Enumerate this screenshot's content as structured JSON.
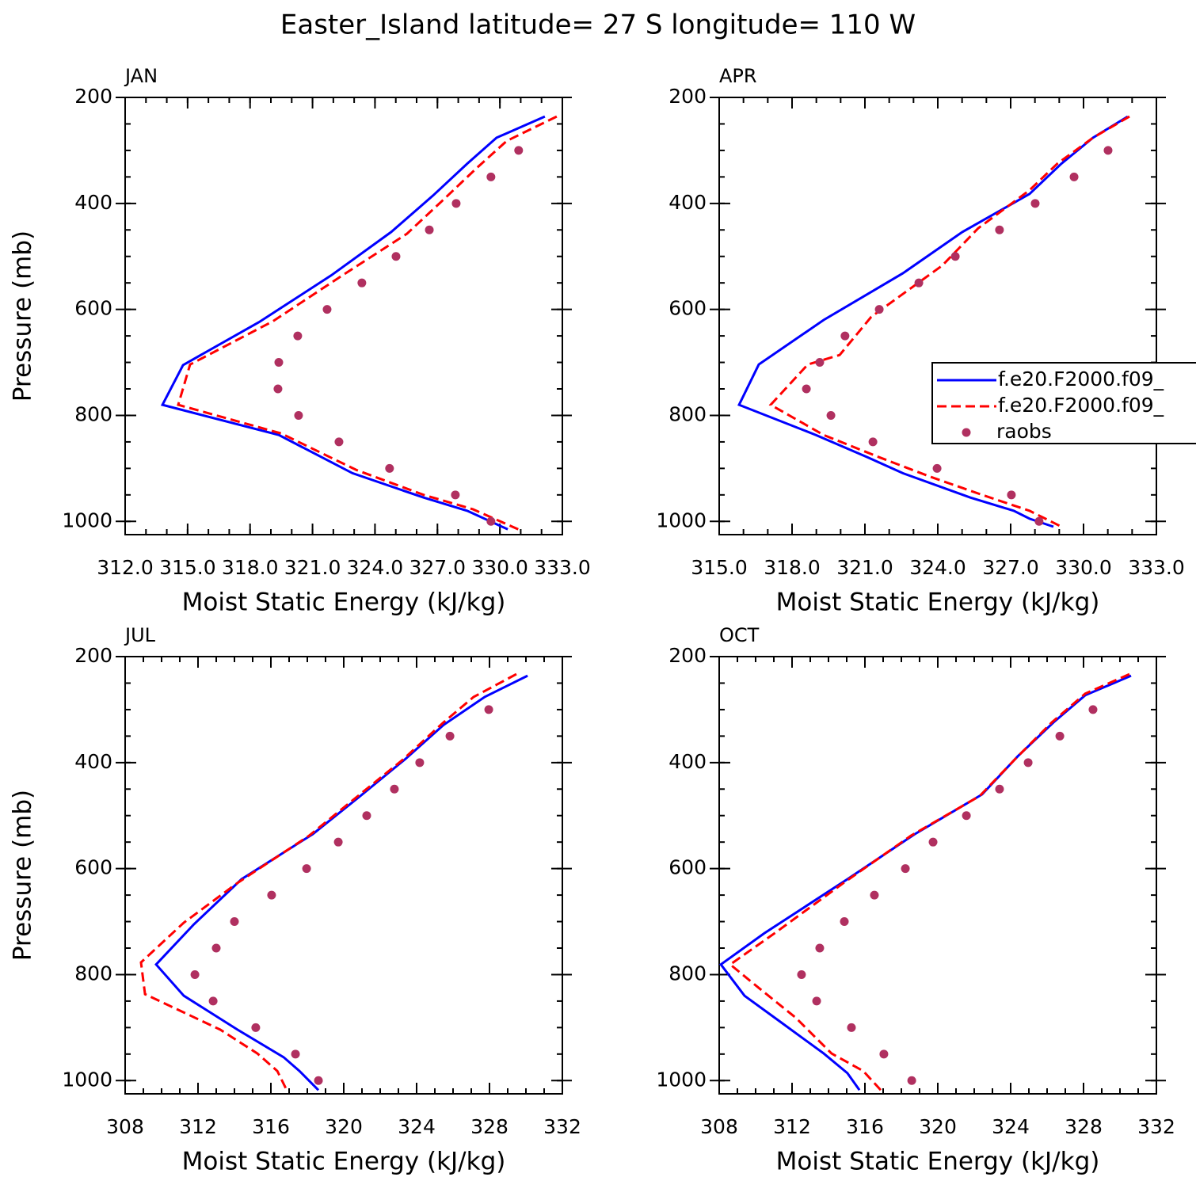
{
  "title": "Easter_Island  latitude= 27 S longitude= 110 W",
  "chart_data": [
    {
      "type": "line",
      "title": "JAN",
      "xlabel": "Moist Static Energy (kJ/kg)",
      "ylabel": "Pressure (mb)",
      "xlim": [
        312,
        333
      ],
      "xticks": [
        {
          "value": 312,
          "label": "312.0"
        },
        {
          "value": 315,
          "label": "315.0"
        },
        {
          "value": 318,
          "label": "318.0"
        },
        {
          "value": 321,
          "label": "321.0"
        },
        {
          "value": 324,
          "label": "324.0"
        },
        {
          "value": 327,
          "label": "327.0"
        },
        {
          "value": 330,
          "label": "330.0"
        },
        {
          "value": 333,
          "label": "333.0"
        }
      ],
      "xminor": 1,
      "ylim": [
        200,
        1025
      ],
      "yticks": [
        200,
        400,
        600,
        800,
        1000
      ],
      "yminor": 50,
      "yreverse": true,
      "series": [
        {
          "color": "#0000ff",
          "x": [
            332.16,
            329.84,
            328.43,
            326.79,
            324.78,
            321.89,
            318.43,
            314.78,
            313.79,
            319.38,
            322.92,
            326.34,
            328.43,
            330.38
          ],
          "y": [
            236,
            276,
            325,
            385,
            454,
            536,
            624,
            705,
            780,
            837,
            909,
            955,
            980,
            1015
          ]
        },
        {
          "color": "#ff0000",
          "dash": true,
          "x": [
            332.73,
            330.33,
            328.89,
            327.18,
            325.54,
            322.23,
            319.11,
            315.12,
            314.55,
            319.49,
            323.11,
            326.34,
            328.7,
            330.88
          ],
          "y": [
            236,
            282,
            333,
            397,
            457,
            541,
            622,
            704,
            780,
            834,
            903,
            950,
            977,
            1015
          ]
        },
        {
          "color": "#b03060",
          "markers": true,
          "x": [
            330.9,
            329.57,
            327.9,
            326.61,
            325.01,
            323.37,
            321.7,
            320.29,
            319.38,
            319.34,
            320.33,
            322.27,
            324.7,
            327.86,
            329.57
          ],
          "y": [
            300,
            350,
            400,
            450,
            500,
            550,
            600,
            650,
            700,
            750,
            800,
            850,
            900,
            950,
            1000
          ]
        }
      ]
    },
    {
      "type": "line",
      "title": "APR",
      "xlabel": "Moist Static Energy (kJ/kg)",
      "xlim": [
        315,
        333
      ],
      "xticks": [
        {
          "value": 315,
          "label": "315.0"
        },
        {
          "value": 318,
          "label": "318.0"
        },
        {
          "value": 321,
          "label": "321.0"
        },
        {
          "value": 324,
          "label": "324.0"
        },
        {
          "value": 327,
          "label": "327.0"
        },
        {
          "value": 330,
          "label": "330.0"
        },
        {
          "value": 333,
          "label": "333.0"
        }
      ],
      "xminor": 1,
      "ylim": [
        200,
        1025
      ],
      "yticks": [
        200,
        400,
        600,
        800,
        1000
      ],
      "yminor": 50,
      "yreverse": true,
      "legend": true,
      "series": [
        {
          "name": "f.e20.F2000.f09_",
          "color": "#0000ff",
          "x": [
            331.82,
            330.39,
            329.09,
            327.78,
            325.01,
            322.56,
            319.3,
            316.63,
            315.82,
            318.98,
            321.1,
            322.56,
            325.34,
            327.13,
            327.78,
            328.76
          ],
          "y": [
            236,
            276,
            325,
            382,
            454,
            532,
            620,
            704,
            780,
            837,
            879,
            909,
            955,
            980,
            995,
            1010
          ]
        },
        {
          "name": "f.e20.F2000.f09_",
          "color": "#ff0000",
          "dash": true,
          "x": [
            331.89,
            330.39,
            328.92,
            327.78,
            325.66,
            324.19,
            321.26,
            319.96,
            318.65,
            317.12,
            319.3,
            321.59,
            323.71,
            325.83,
            327.78,
            329.09
          ],
          "y": [
            236,
            276,
            325,
            375,
            447,
            517,
            614,
            686,
            704,
            780,
            837,
            879,
            916,
            950,
            980,
            1010
          ]
        },
        {
          "name": "raobs",
          "color": "#b03060",
          "markers": true,
          "x": [
            331.01,
            329.61,
            328.01,
            326.54,
            324.72,
            323.22,
            321.59,
            320.18,
            319.14,
            318.59,
            319.6,
            321.33,
            323.97,
            327.03,
            328.17
          ],
          "y": [
            300,
            350,
            400,
            450,
            500,
            550,
            600,
            650,
            700,
            750,
            800,
            850,
            900,
            950,
            1000
          ]
        }
      ]
    },
    {
      "type": "line",
      "title": "JUL",
      "xlabel": "Moist Static Energy (kJ/kg)",
      "ylabel": "Pressure (mb)",
      "xlim": [
        308,
        332
      ],
      "xticks": [
        308,
        312,
        316,
        320,
        324,
        328,
        332
      ],
      "xminor": 1,
      "ylim": [
        200,
        1025
      ],
      "yticks": [
        200,
        400,
        600,
        800,
        1000
      ],
      "yminor": 50,
      "yreverse": true,
      "series": [
        {
          "color": "#0000ff",
          "x": [
            330.09,
            327.74,
            325.48,
            323.39,
            320.91,
            318.3,
            314.39,
            311.78,
            309.7,
            311.22,
            314.17,
            316.7,
            317.57,
            318.61
          ],
          "y": [
            236,
            276,
            329,
            393,
            463,
            535,
            620,
            705,
            781,
            840,
            904,
            956,
            982,
            1018
          ]
        },
        {
          "color": "#ff0000",
          "dash": true,
          "x": [
            329.48,
            327.13,
            325.48,
            323.22,
            320.78,
            318.09,
            314.17,
            311.22,
            308.87,
            309.09,
            313.22,
            315.26,
            316.35,
            316.87
          ],
          "y": [
            233,
            276,
            324,
            395,
            463,
            538,
            627,
            702,
            777,
            837,
            904,
            949,
            982,
            1018
          ]
        },
        {
          "color": "#b03060",
          "markers": true,
          "x": [
            327.96,
            325.83,
            324.17,
            322.78,
            321.26,
            319.7,
            317.96,
            316.04,
            314.0,
            313.0,
            311.83,
            312.83,
            315.17,
            317.35,
            318.61
          ],
          "y": [
            300,
            350,
            400,
            450,
            500,
            550,
            600,
            650,
            700,
            750,
            800,
            850,
            900,
            950,
            1000
          ]
        }
      ]
    },
    {
      "type": "line",
      "title": "OCT",
      "xlabel": "Moist Static Energy (kJ/kg)",
      "xlim": [
        308,
        332
      ],
      "xticks": [
        308,
        312,
        316,
        320,
        324,
        328,
        332
      ],
      "xminor": 1,
      "ylim": [
        200,
        1025
      ],
      "yticks": [
        200,
        400,
        600,
        800,
        1000
      ],
      "yminor": 50,
      "yreverse": true,
      "series": [
        {
          "color": "#0000ff",
          "x": [
            330.61,
            328.09,
            326.35,
            324.39,
            322.43,
            318.74,
            315.04,
            310.48,
            308.09,
            309.39,
            311.35,
            313.74,
            315.04,
            315.7
          ],
          "y": [
            236,
            273,
            324,
            388,
            460,
            535,
            620,
            722,
            781,
            840,
            889,
            949,
            986,
            1018
          ]
        },
        {
          "color": "#ff0000",
          "dash": true,
          "x": [
            330.52,
            328.09,
            326.26,
            324.26,
            322.3,
            318.52,
            314.83,
            311.04,
            308.61,
            310.17,
            312.22,
            314.17,
            315.91,
            316.87
          ],
          "y": [
            233,
            270,
            324,
            393,
            463,
            538,
            627,
            722,
            781,
            825,
            882,
            949,
            982,
            1018
          ]
        },
        {
          "color": "#b03060",
          "markers": true,
          "x": [
            328.52,
            326.7,
            324.96,
            323.39,
            321.57,
            319.74,
            318.22,
            316.52,
            314.87,
            313.52,
            312.52,
            313.35,
            315.26,
            317.04,
            318.57
          ],
          "y": [
            300,
            350,
            400,
            450,
            500,
            550,
            600,
            650,
            700,
            750,
            800,
            850,
            900,
            950,
            1000
          ]
        }
      ]
    }
  ]
}
